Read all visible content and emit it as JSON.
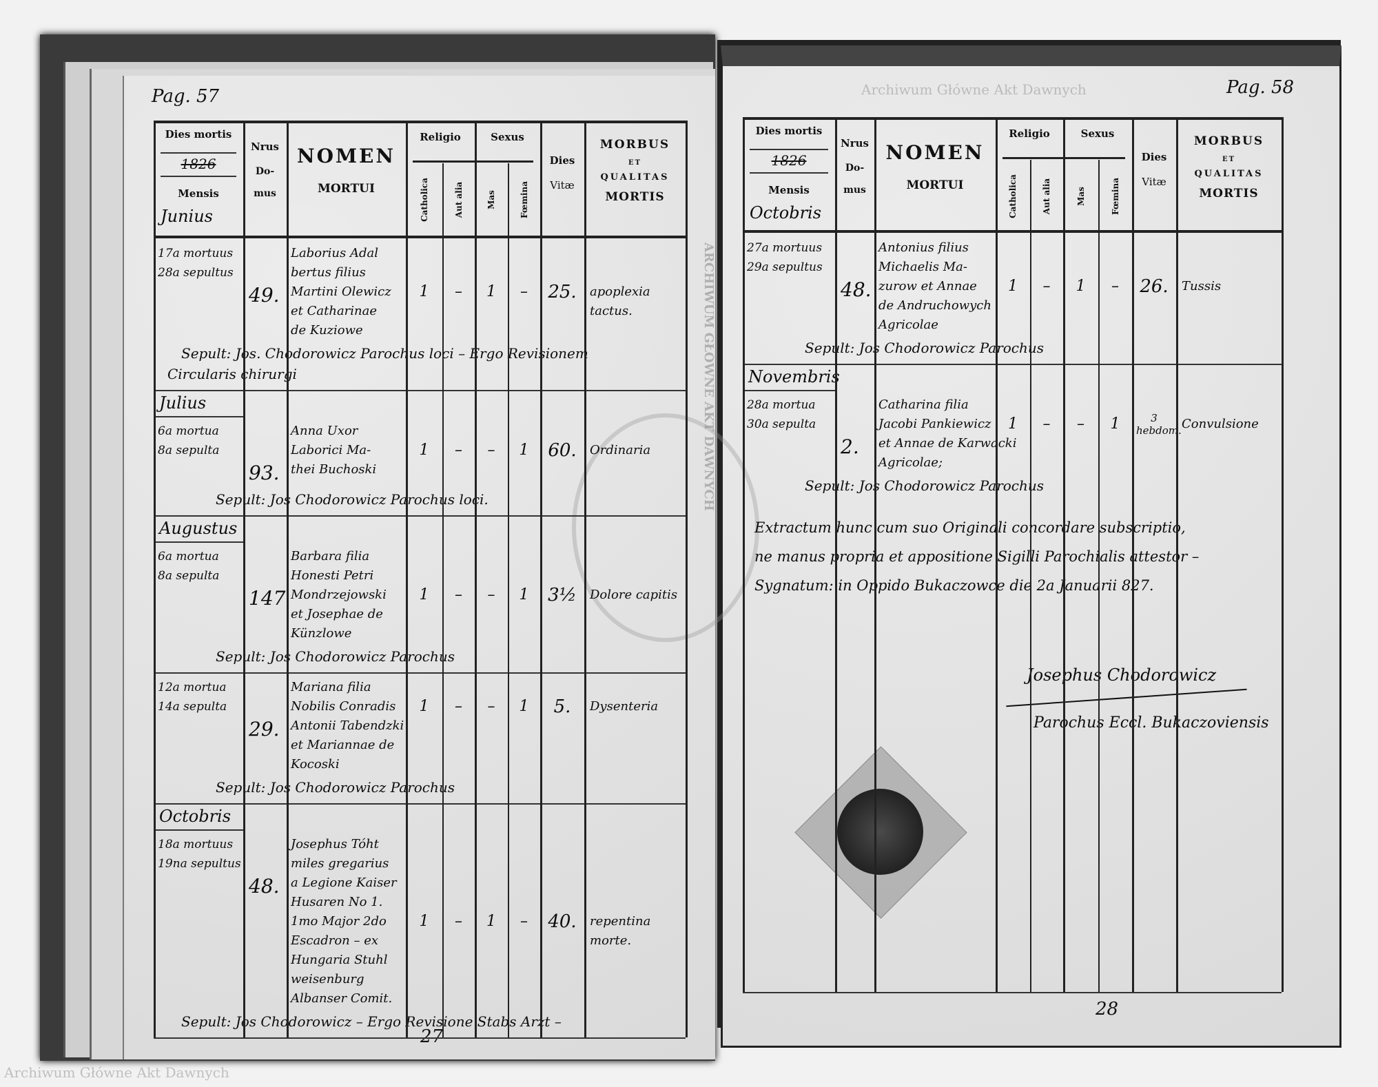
{
  "header_labels": {
    "dies_mortis": "Dies mortis",
    "year": "1826",
    "mensis": "Mensis",
    "nrus": "Nrus",
    "domus": [
      "Do-",
      "mus"
    ],
    "nomen": "NOMEN",
    "mortui": "MORTUI",
    "religio": "Religio",
    "sexus": "Sexus",
    "catholica": "Catholica",
    "aut_alia": "Aut alia",
    "mas": "Mas",
    "foemina": "Fœmina",
    "dies_vitae": [
      "Dies",
      "Vitæ"
    ],
    "morbus": [
      "MORBUS",
      "ET",
      "QUALITAS",
      "MORTIS"
    ]
  },
  "left_page": {
    "page_label": "Pag. 57",
    "month_in_header": "Junius",
    "page_number": "27",
    "entries": [
      {
        "month": "",
        "dates": [
          "17a mortuus",
          "28a sepultus"
        ],
        "domus": "49.",
        "name": [
          "Laborius Adal",
          "bertus filius",
          "Martini Olewicz",
          "et Catharinae",
          "de Kuziowe"
        ],
        "catholica": "1",
        "aut_alia": "–",
        "mas": "1",
        "foemina": "–",
        "vitae": "25.",
        "morbus": [
          "apoplexia",
          "tactus."
        ],
        "note": [
          "Sepult: Jos. Chodorowicz Parochus loci – Ergo Revisionem",
          "Circularis chirurgi"
        ]
      },
      {
        "month": "Julius",
        "dates": [
          "6a mortua",
          "8a sepulta"
        ],
        "domus": "93.",
        "name": [
          "Anna Uxor",
          "Laborici Ma-",
          "thei Buchoski"
        ],
        "catholica": "1",
        "aut_alia": "–",
        "mas": "–",
        "foemina": "1",
        "vitae": "60.",
        "morbus": [
          "Ordinaria"
        ],
        "note": [
          "Sepult: Jos Chodorowicz Parochus loci."
        ]
      },
      {
        "month": "Augustus",
        "dates": [
          "6a mortua",
          "8a sepulta"
        ],
        "domus": "147",
        "name": [
          "Barbara filia",
          "Honesti Petri",
          "Mondrzejowski",
          "et Josephae de",
          "Künzlowe"
        ],
        "catholica": "1",
        "aut_alia": "–",
        "mas": "–",
        "foemina": "1",
        "vitae": "3½",
        "morbus": [
          "Dolore capitis"
        ],
        "note": [
          "Sepult: Jos Chodorowicz Parochus"
        ]
      },
      {
        "month": "",
        "dates": [
          "12a mortua",
          "14a sepulta"
        ],
        "domus": "29.",
        "name": [
          "Mariana filia",
          "Nobilis Conradis",
          "Antonii Tabendzki",
          "et Mariannae de",
          "Kocoski"
        ],
        "catholica": "1",
        "aut_alia": "–",
        "mas": "–",
        "foemina": "1",
        "vitae": "5.",
        "morbus": [
          "Dysenteria"
        ],
        "note": [
          "Sepult: Jos Chodorowicz Parochus"
        ]
      },
      {
        "month": "Octobris",
        "dates": [
          "18a mortuus",
          "19na sepultus"
        ],
        "domus": "48.",
        "name": [
          "Josephus Tóht",
          "miles gregarius",
          "a Legione Kaiser",
          "Husaren No 1.",
          "1mo Major 2do",
          "Escadron – ex",
          "Hungaria Stuhl",
          "weisenburg",
          "Albanser Comit."
        ],
        "catholica": "1",
        "aut_alia": "–",
        "mas": "1",
        "foemina": "–",
        "vitae": "40.",
        "morbus": [
          "repentina",
          "morte."
        ],
        "note": [
          "Sepult: Jos Chodorowicz – Ergo Revisione Stabs Arzt –"
        ]
      }
    ]
  },
  "right_page": {
    "page_label": "Pag. 58",
    "month_in_header": "Octobris",
    "page_number": "28",
    "entries": [
      {
        "month": "",
        "dates": [
          "27a mortuus",
          "29a sepultus"
        ],
        "domus": "48.",
        "name": [
          "Antonius filius",
          "Michaelis Ma-",
          "zurow et Annae",
          "de Andruchowych",
          "Agricolae"
        ],
        "catholica": "1",
        "aut_alia": "–",
        "mas": "1",
        "foemina": "–",
        "vitae": "26.",
        "morbus": [
          "Tussis"
        ],
        "note": [
          "Sepult: Jos Chodorowicz Parochus"
        ]
      },
      {
        "month": "Novembris",
        "dates": [
          "28a mortua",
          "30a sepulta"
        ],
        "domus": "2.",
        "name": [
          "Catharina filia",
          "Jacobi Pankiewicz",
          "et Annae de Karwacki",
          "Agricolae;"
        ],
        "catholica": "1",
        "aut_alia": "–",
        "mas": "–",
        "foemina": "1",
        "vitae": "3 hebdom.",
        "morbus": [
          "Convulsione"
        ],
        "note": [
          "Sepult: Jos Chodorowicz Parochus"
        ]
      }
    ],
    "attestation": [
      "Extractum hunc cum suo Originali concordare subscriptio,",
      "ne manus propria et appositione Sigilli Parochialis attestor –",
      "Sygnatum: in Oppido Bukaczowce die 2a Januarii 827."
    ],
    "signature": [
      "Josephus Chodorowicz",
      "Parochus Eccl. Bukaczoviensis"
    ]
  },
  "watermark": "Archiwum Główne Akt Dawnych",
  "stamp_text": "ARCHIWUM GŁÓWNE AKT DAWNYCH"
}
